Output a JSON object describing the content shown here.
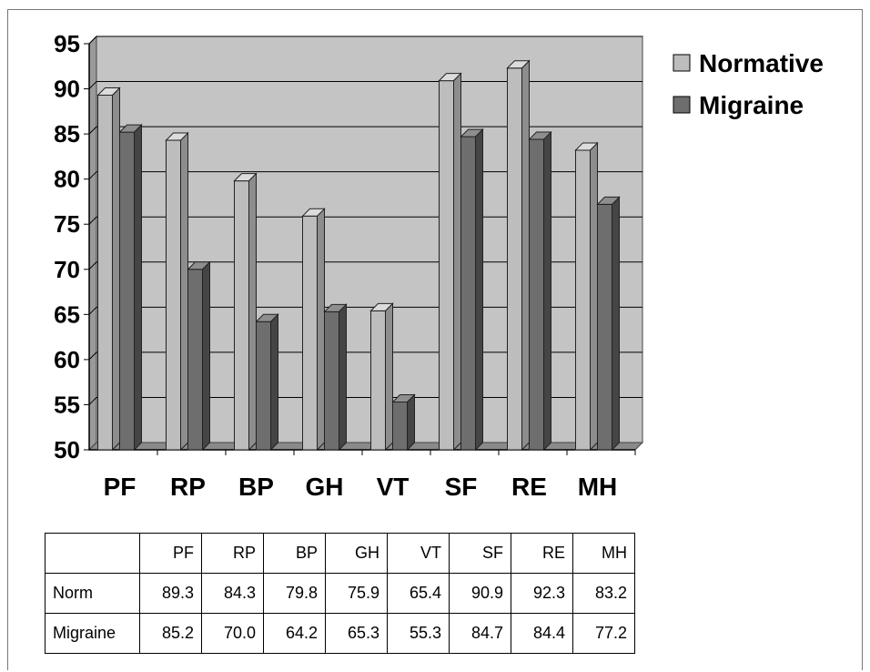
{
  "chart_data": {
    "type": "bar",
    "categories": [
      "PF",
      "RP",
      "BP",
      "GH",
      "VT",
      "SF",
      "RE",
      "MH"
    ],
    "series": [
      {
        "name": "Normative",
        "values": [
          89.3,
          84.3,
          79.8,
          75.9,
          65.4,
          90.9,
          92.3,
          83.2
        ]
      },
      {
        "name": "Migraine",
        "values": [
          85.2,
          70.0,
          64.2,
          65.3,
          55.3,
          84.7,
          84.4,
          77.2
        ]
      }
    ],
    "ylim": [
      50,
      95
    ],
    "yticks": [
      "50",
      "55",
      "60",
      "65",
      "70",
      "75",
      "80",
      "85",
      "90",
      "95"
    ],
    "grid": true,
    "legend_position": "top-right",
    "colors": {
      "Normative": "#bdbdbd",
      "Migraine": "#6e6e6e",
      "plot_background": "#c4c4c4"
    }
  },
  "table": {
    "header": [
      "",
      "PF",
      "RP",
      "BP",
      "GH",
      "VT",
      "SF",
      "RE",
      "MH"
    ],
    "rows": [
      {
        "label": "Norm",
        "cells": [
          "89.3",
          "84.3",
          "79.8",
          "75.9",
          "65.4",
          "90.9",
          "92.3",
          "83.2"
        ]
      },
      {
        "label": "Migraine",
        "cells": [
          "85.2",
          "70.0",
          "64.2",
          "65.3",
          "55.3",
          "84.7",
          "84.4",
          "77.2"
        ]
      }
    ]
  }
}
